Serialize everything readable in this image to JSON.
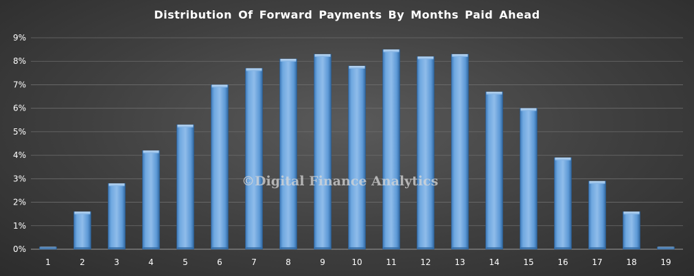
{
  "chart_data": {
    "type": "bar",
    "title": "Distribution Of Forward Payments By Months Paid Ahead",
    "xlabel": "",
    "ylabel": "",
    "categories": [
      "1",
      "2",
      "3",
      "4",
      "5",
      "6",
      "7",
      "8",
      "9",
      "10",
      "11",
      "12",
      "13",
      "14",
      "15",
      "16",
      "17",
      "18",
      "19"
    ],
    "values": [
      0.1,
      1.6,
      2.8,
      4.2,
      5.3,
      7.0,
      7.7,
      8.1,
      8.3,
      7.8,
      8.5,
      8.2,
      8.3,
      6.7,
      6.0,
      3.9,
      2.9,
      1.6,
      0.1
    ],
    "ylim": [
      0,
      9
    ],
    "yticks": [
      "0%",
      "1%",
      "2%",
      "3%",
      "4%",
      "5%",
      "6%",
      "7%",
      "8%",
      "9%"
    ],
    "grid": true,
    "legend": "none",
    "colors": {
      "bar": "#5b9bd5",
      "grid": "#6e6e6e",
      "text": "#ffffff"
    }
  },
  "watermark": "©Digital Finance Analytics"
}
